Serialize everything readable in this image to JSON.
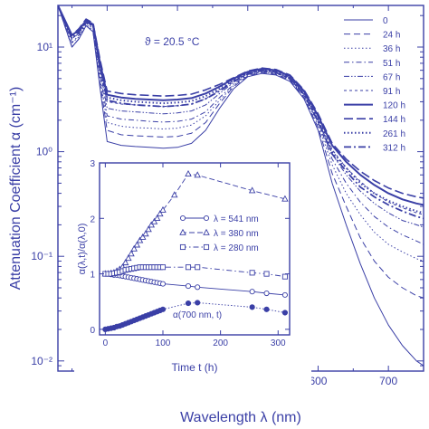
{
  "chart_data": [
    {
      "type": "line",
      "ylabel": "Attenuation Coefficient α (cm⁻¹)",
      "xlabel": "Wavelength λ (nm)",
      "annotation": "ϑ = 20.5 °C",
      "xlim": [
        230,
        750
      ],
      "ylim": [
        0.008,
        25
      ],
      "yscale": "log",
      "x_ticks": [
        300,
        400,
        500,
        600,
        700
      ],
      "y_tick_labels": [
        "10⁻²",
        "10⁻¹",
        "10⁰",
        "10¹"
      ],
      "y_tick_values": [
        0.01,
        0.1,
        1,
        10
      ],
      "legend": "top-right",
      "x": [
        230,
        250,
        260,
        270,
        280,
        290,
        300,
        320,
        340,
        360,
        380,
        400,
        420,
        440,
        460,
        480,
        500,
        520,
        540,
        560,
        580,
        600,
        620,
        640,
        660,
        680,
        700,
        720,
        740,
        750
      ],
      "series": [
        {
          "name": "0",
          "style": "solid-thin",
          "values": [
            25,
            10,
            12,
            16,
            14,
            4,
            1.25,
            1.15,
            1.12,
            1.1,
            1.08,
            1.1,
            1.2,
            1.6,
            2.6,
            4.0,
            5.2,
            5.6,
            5.4,
            4.7,
            3.2,
            1.6,
            0.5,
            0.2,
            0.085,
            0.04,
            0.022,
            0.014,
            0.01,
            0.009
          ]
        },
        {
          "name": "24 h",
          "style": "dashed",
          "values": [
            25,
            10,
            12,
            16,
            14,
            4.5,
            1.6,
            1.45,
            1.42,
            1.4,
            1.38,
            1.4,
            1.5,
            1.9,
            2.9,
            4.2,
            5.3,
            5.7,
            5.5,
            4.8,
            3.3,
            1.7,
            0.62,
            0.3,
            0.15,
            0.09,
            0.063,
            0.05,
            0.042,
            0.04
          ]
        },
        {
          "name": "36 h",
          "style": "dotted",
          "values": [
            25,
            11,
            12.5,
            16.5,
            14.5,
            5,
            1.9,
            1.75,
            1.7,
            1.68,
            1.65,
            1.68,
            1.8,
            2.2,
            3.1,
            4.3,
            5.4,
            5.8,
            5.6,
            4.9,
            3.4,
            1.8,
            0.75,
            0.4,
            0.25,
            0.17,
            0.13,
            0.11,
            0.095,
            0.09
          ]
        },
        {
          "name": "51 h",
          "style": "dashdot",
          "values": [
            25,
            11,
            13,
            17,
            15,
            5.5,
            2.2,
            2.05,
            2.0,
            1.95,
            1.92,
            1.95,
            2.05,
            2.4,
            3.3,
            4.4,
            5.5,
            5.9,
            5.7,
            5.0,
            3.5,
            1.9,
            0.85,
            0.5,
            0.33,
            0.24,
            0.19,
            0.16,
            0.14,
            0.13
          ]
        },
        {
          "name": "67 h",
          "style": "dashdotdot",
          "values": [
            25,
            12,
            13.5,
            17,
            15.5,
            6,
            2.6,
            2.45,
            2.4,
            2.35,
            2.3,
            2.35,
            2.45,
            2.8,
            3.6,
            4.6,
            5.6,
            6.0,
            5.8,
            5.1,
            3.6,
            2.0,
            0.95,
            0.6,
            0.42,
            0.32,
            0.26,
            0.22,
            0.2,
            0.19
          ]
        },
        {
          "name": "91 h",
          "style": "shortdash",
          "values": [
            25,
            12,
            14,
            17.5,
            16,
            6.5,
            3.0,
            2.85,
            2.8,
            2.75,
            2.7,
            2.75,
            2.85,
            3.2,
            3.9,
            4.8,
            5.7,
            6.1,
            5.9,
            5.2,
            3.7,
            2.1,
            1.05,
            0.7,
            0.52,
            0.4,
            0.33,
            0.29,
            0.26,
            0.25
          ]
        },
        {
          "name": "120 h",
          "style": "solid-thick",
          "values": [
            25,
            13,
            14.5,
            18,
            16.5,
            7,
            3.5,
            3.3,
            3.2,
            3.15,
            3.1,
            3.15,
            3.25,
            3.6,
            4.2,
            5.0,
            5.8,
            6.2,
            6.0,
            5.3,
            3.8,
            2.2,
            1.15,
            0.8,
            0.6,
            0.48,
            0.4,
            0.35,
            0.32,
            0.31
          ]
        },
        {
          "name": "144 h",
          "style": "longdash",
          "values": [
            25,
            13,
            15,
            18.5,
            17,
            7.5,
            3.8,
            3.6,
            3.5,
            3.45,
            3.4,
            3.45,
            3.55,
            3.9,
            4.4,
            5.1,
            5.9,
            6.3,
            6.1,
            5.4,
            3.9,
            2.3,
            1.2,
            0.85,
            0.65,
            0.53,
            0.45,
            0.4,
            0.37,
            0.36
          ]
        },
        {
          "name": "261 h",
          "style": "dotted-thick",
          "values": [
            25,
            12.5,
            14.5,
            18,
            16.5,
            7,
            3.3,
            3.1,
            3.0,
            2.95,
            2.9,
            2.95,
            3.05,
            3.4,
            4.0,
            4.8,
            5.6,
            6.0,
            5.8,
            5.1,
            3.6,
            2.0,
            1.0,
            0.7,
            0.5,
            0.4,
            0.34,
            0.3,
            0.27,
            0.26
          ]
        },
        {
          "name": "312 h",
          "style": "dashdot-thick",
          "values": [
            25,
            12,
            14,
            17.5,
            16,
            6.5,
            3.1,
            2.9,
            2.8,
            2.75,
            2.7,
            2.75,
            2.85,
            3.2,
            3.8,
            4.7,
            5.5,
            5.9,
            5.7,
            5.0,
            3.5,
            1.95,
            0.95,
            0.65,
            0.46,
            0.37,
            0.31,
            0.27,
            0.24,
            0.23
          ]
        }
      ]
    },
    {
      "type": "line",
      "xlabel": "Time t (h)",
      "ylabel": "α(λ,t)/α(λ,0)",
      "xlim": [
        -10,
        320
      ],
      "ylim": [
        -0.1,
        3.0
      ],
      "x_ticks": [
        0,
        100,
        200,
        300
      ],
      "y_ticks": [
        0,
        1,
        2,
        3
      ],
      "legend": "right",
      "annotation": "α(700 nm, t)",
      "series": [
        {
          "name": "λ = 541 nm",
          "marker": "circle",
          "style": "solid",
          "x": [
            0,
            5,
            10,
            15,
            20,
            25,
            30,
            35,
            40,
            45,
            50,
            55,
            60,
            65,
            70,
            75,
            80,
            85,
            90,
            95,
            100,
            144,
            160,
            255,
            280,
            312
          ],
          "values": [
            1.0,
            1.0,
            0.99,
            0.98,
            0.98,
            0.97,
            0.96,
            0.95,
            0.94,
            0.93,
            0.92,
            0.91,
            0.9,
            0.89,
            0.88,
            0.87,
            0.86,
            0.85,
            0.84,
            0.83,
            0.82,
            0.78,
            0.76,
            0.68,
            0.65,
            0.62
          ]
        },
        {
          "name": "λ = 380 nm",
          "marker": "triangle",
          "style": "dashed",
          "x": [
            0,
            5,
            10,
            15,
            20,
            25,
            30,
            35,
            40,
            45,
            50,
            55,
            60,
            65,
            70,
            75,
            80,
            85,
            90,
            95,
            100,
            120,
            144,
            160,
            255,
            312
          ],
          "values": [
            1.0,
            1.0,
            1.01,
            1.02,
            1.05,
            1.08,
            1.12,
            1.2,
            1.28,
            1.36,
            1.45,
            1.52,
            1.6,
            1.66,
            1.72,
            1.8,
            1.88,
            1.94,
            2.0,
            2.08,
            2.15,
            2.42,
            2.8,
            2.78,
            2.5,
            2.35
          ]
        },
        {
          "name": "λ = 280 nm",
          "marker": "square",
          "style": "dashdot",
          "x": [
            0,
            5,
            10,
            15,
            20,
            25,
            30,
            35,
            40,
            45,
            50,
            55,
            60,
            65,
            70,
            75,
            80,
            85,
            90,
            95,
            100,
            144,
            160,
            255,
            280,
            312
          ],
          "values": [
            1.0,
            1.0,
            1.0,
            1.01,
            1.02,
            1.03,
            1.05,
            1.07,
            1.08,
            1.09,
            1.1,
            1.11,
            1.12,
            1.12,
            1.12,
            1.12,
            1.12,
            1.12,
            1.12,
            1.12,
            1.12,
            1.12,
            1.12,
            1.02,
            1.0,
            0.95
          ]
        },
        {
          "name": "α(700 nm, t)",
          "marker": "filled-circle",
          "style": "dotted",
          "x": [
            0,
            5,
            10,
            15,
            20,
            25,
            30,
            35,
            40,
            45,
            50,
            55,
            60,
            65,
            70,
            75,
            80,
            85,
            90,
            95,
            100,
            144,
            160,
            255,
            280,
            312
          ],
          "values": [
            0.0,
            0.01,
            0.02,
            0.03,
            0.05,
            0.06,
            0.08,
            0.1,
            0.12,
            0.14,
            0.16,
            0.18,
            0.2,
            0.22,
            0.24,
            0.26,
            0.28,
            0.3,
            0.32,
            0.34,
            0.36,
            0.47,
            0.48,
            0.4,
            0.36,
            0.3
          ]
        }
      ]
    }
  ]
}
